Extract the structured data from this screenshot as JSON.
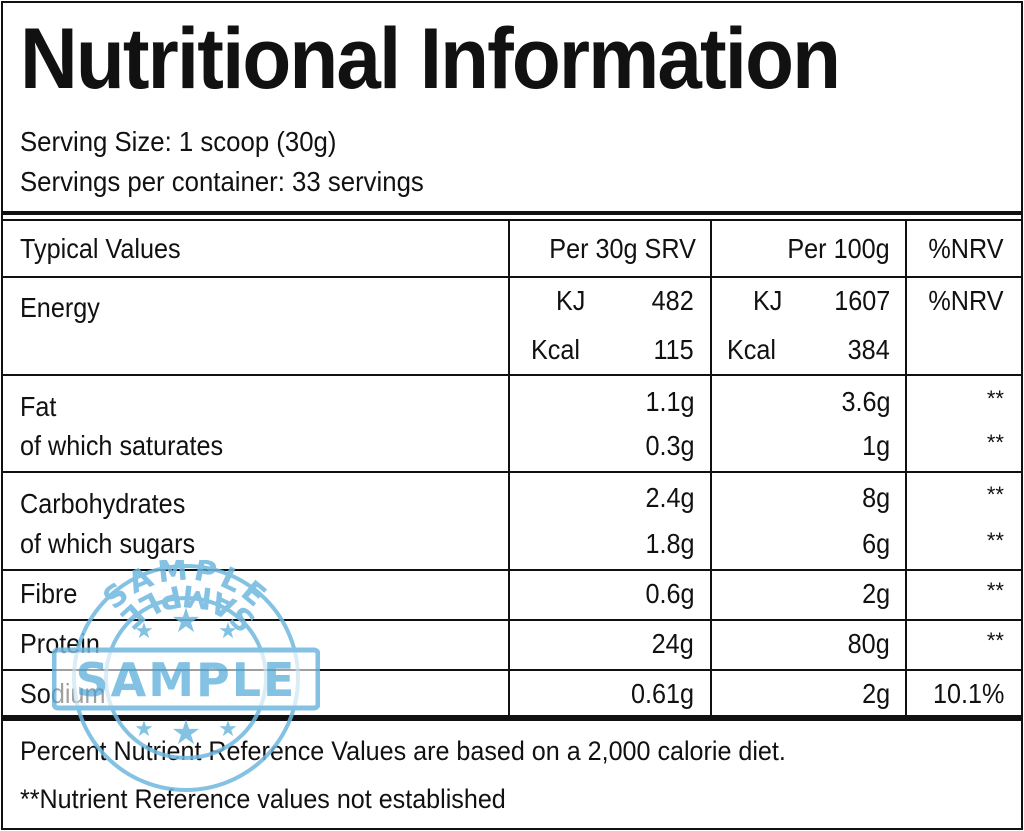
{
  "title": "Nutritional Information",
  "serving_size": "Serving Size: 1 scoop (30g)",
  "servings_per_container": "Servings per container: 33 servings",
  "header": {
    "col1": "Typical Values",
    "col2": "Per 30g SRV",
    "col3": "Per 100g",
    "col4": "%NRV"
  },
  "energy": {
    "label": "Energy",
    "kj_unit": "KJ",
    "kcal_unit": "Kcal",
    "kj_per_serving": "482",
    "kcal_per_serving": "115",
    "kj_per_100g": "1607",
    "kcal_per_100g": "384",
    "nrv": "%NRV"
  },
  "rows": [
    {
      "label": "Fat",
      "per_serving": "1.1g",
      "per_100g": "3.6g",
      "nrv": "**"
    },
    {
      "label": "of which saturates",
      "per_serving": "0.3g",
      "per_100g": "1g",
      "nrv": "**"
    },
    {
      "label": "Carbohydrates",
      "per_serving": "2.4g",
      "per_100g": "8g",
      "nrv": "**"
    },
    {
      "label": "of which sugars",
      "per_serving": "1.8g",
      "per_100g": "6g",
      "nrv": "**"
    },
    {
      "label": "Fibre",
      "per_serving": "0.6g",
      "per_100g": "2g",
      "nrv": "**"
    },
    {
      "label": "Protein",
      "per_serving": "24g",
      "per_100g": "80g",
      "nrv": "**"
    },
    {
      "label": "Sodium",
      "per_serving": "0.61g",
      "per_100g": "2g",
      "nrv": "10.1%"
    }
  ],
  "footer": {
    "line1": "Percent Nutrient Reference Values are based on a 2,000 calorie diet.",
    "line2": "**Nutrient Reference values not established"
  },
  "stamp": {
    "text": "SAMPLE",
    "color": "#6fb8e0",
    "icon": "sample-stamp-icon"
  }
}
